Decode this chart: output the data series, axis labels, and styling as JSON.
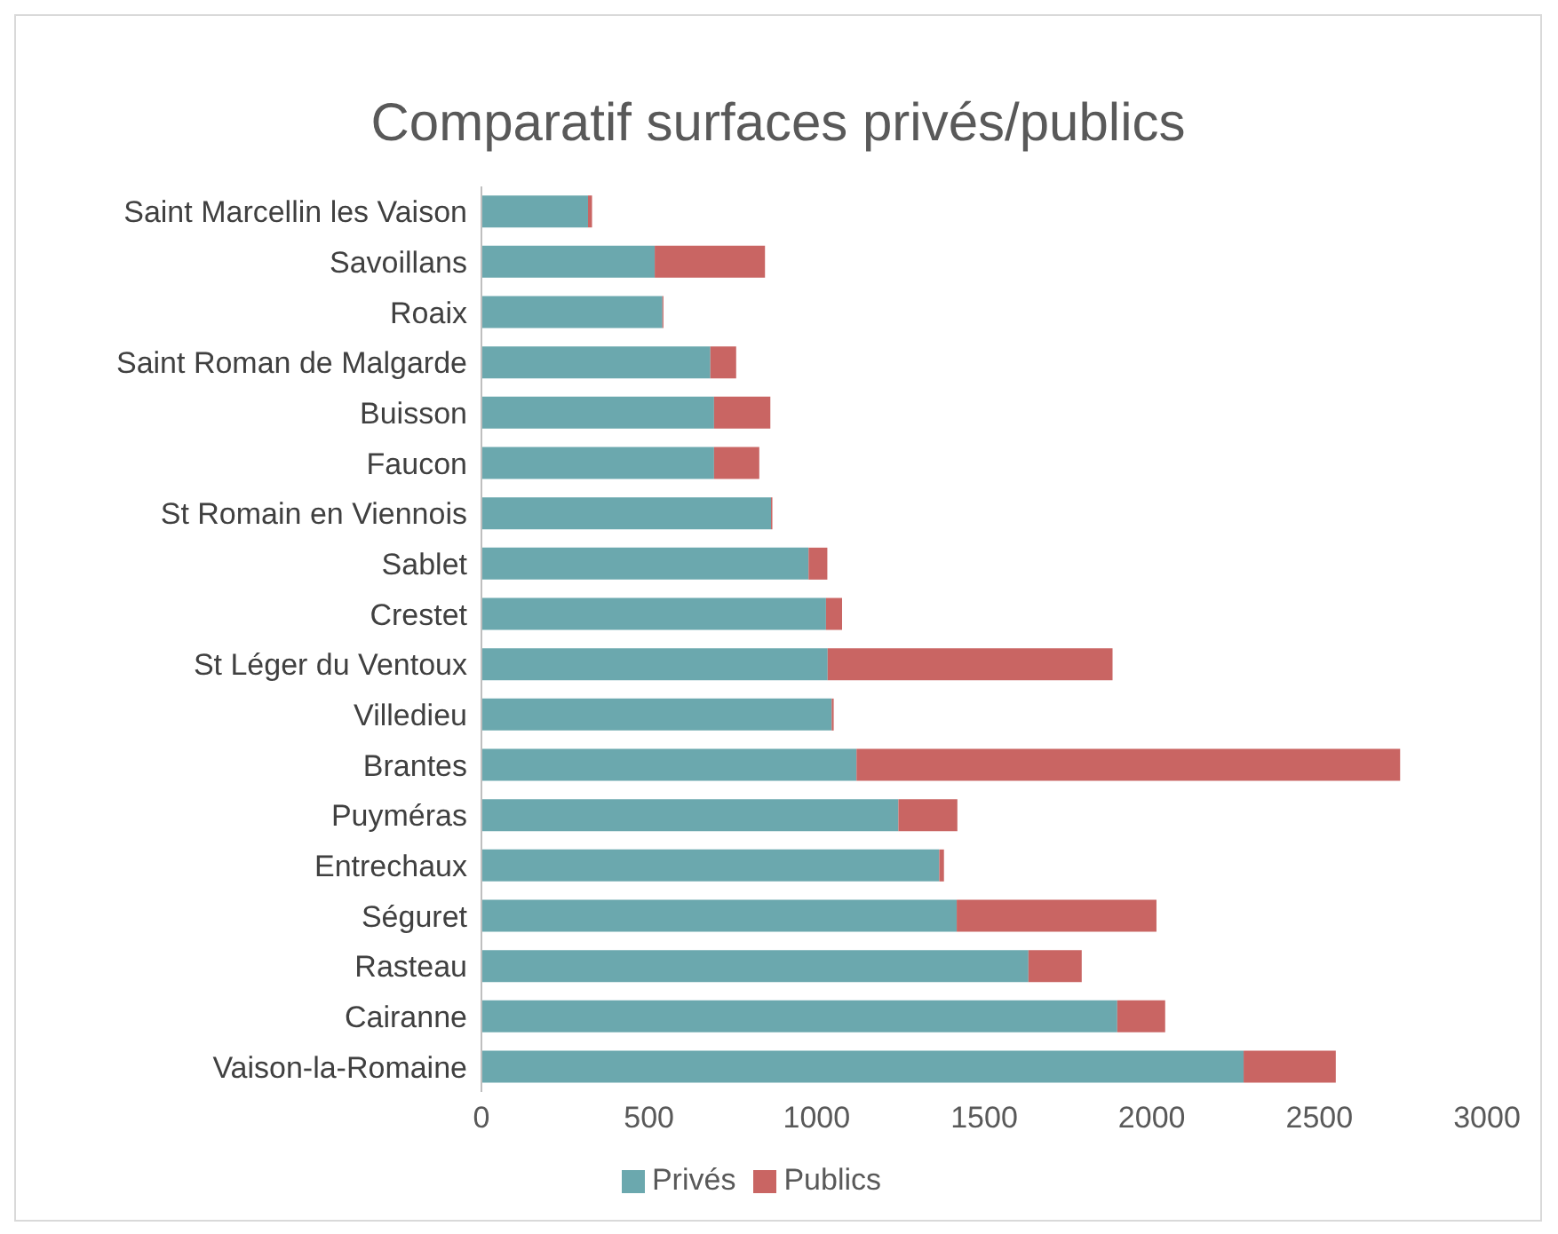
{
  "chart_data": {
    "type": "bar",
    "orientation": "horizontal",
    "stacked": true,
    "title": "Comparatif surfaces privés/publics",
    "categories": [
      "Saint Marcellin les Vaison",
      "Savoillans",
      "Roaix",
      "Saint Roman de Malgarde",
      "Buisson",
      "Faucon",
      "St Romain en Viennois",
      "Sablet",
      "Crestet",
      "St Léger du Ventoux",
      "Villedieu",
      "Brantes",
      "Puyméras",
      "Entrechaux",
      "Séguret",
      "Rasteau",
      "Cairanne",
      "Vaison-la-Romaine"
    ],
    "series": [
      {
        "name": "Privés",
        "color": "#6ba8ae",
        "values": [
          318,
          517,
          540,
          683,
          694,
          694,
          864,
          976,
          1028,
          1033,
          1045,
          1119,
          1244,
          1366,
          1418,
          1632,
          1897,
          2274
        ]
      },
      {
        "name": "Publics",
        "color": "#c96563",
        "values": [
          12,
          329,
          3,
          77,
          168,
          135,
          4,
          56,
          48,
          850,
          6,
          1622,
          176,
          14,
          596,
          159,
          143,
          275
        ]
      }
    ],
    "xlim": [
      0,
      3000
    ],
    "xticks": [
      0,
      500,
      1000,
      1500,
      2000,
      2500,
      3000
    ],
    "grid": false,
    "legend": "bottom"
  }
}
